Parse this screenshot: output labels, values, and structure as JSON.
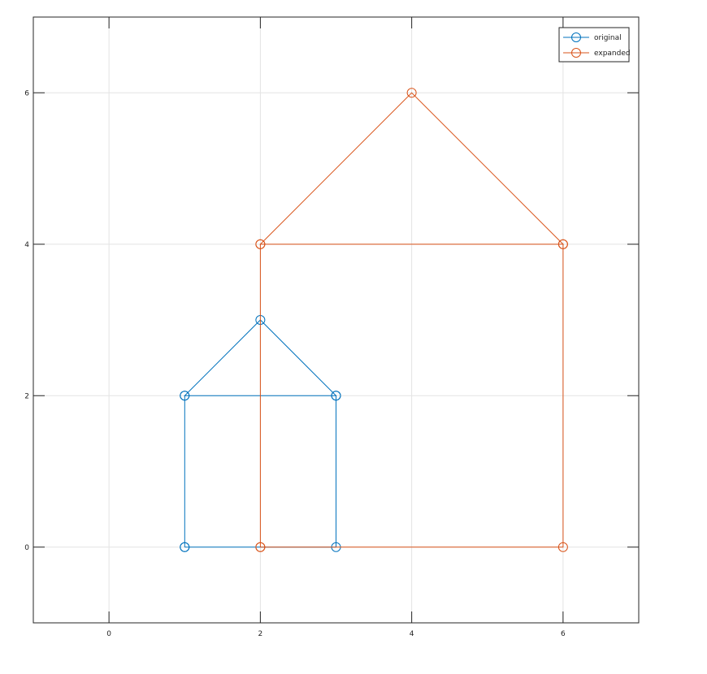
{
  "chart_data": {
    "type": "line",
    "title": "",
    "xlabel": "",
    "ylabel": "",
    "xlim": [
      -1,
      7
    ],
    "ylim": [
      -1,
      7
    ],
    "xticks": [
      0,
      2,
      4,
      6
    ],
    "yticks": [
      0,
      2,
      4,
      6
    ],
    "grid": true,
    "legend_position": "top-right",
    "marker": "circle",
    "series": [
      {
        "name": "original",
        "color": "#0072bd",
        "points": [
          [
            1,
            0
          ],
          [
            3,
            0
          ],
          [
            3,
            2
          ],
          [
            1,
            2
          ],
          [
            2,
            3
          ],
          [
            3,
            2
          ],
          [
            1,
            2
          ],
          [
            1,
            0
          ]
        ]
      },
      {
        "name": "expanded",
        "color": "#d95319",
        "points": [
          [
            2,
            0
          ],
          [
            6,
            0
          ],
          [
            6,
            4
          ],
          [
            2,
            4
          ],
          [
            4,
            6
          ],
          [
            6,
            4
          ],
          [
            2,
            4
          ],
          [
            2,
            0
          ]
        ]
      }
    ]
  }
}
